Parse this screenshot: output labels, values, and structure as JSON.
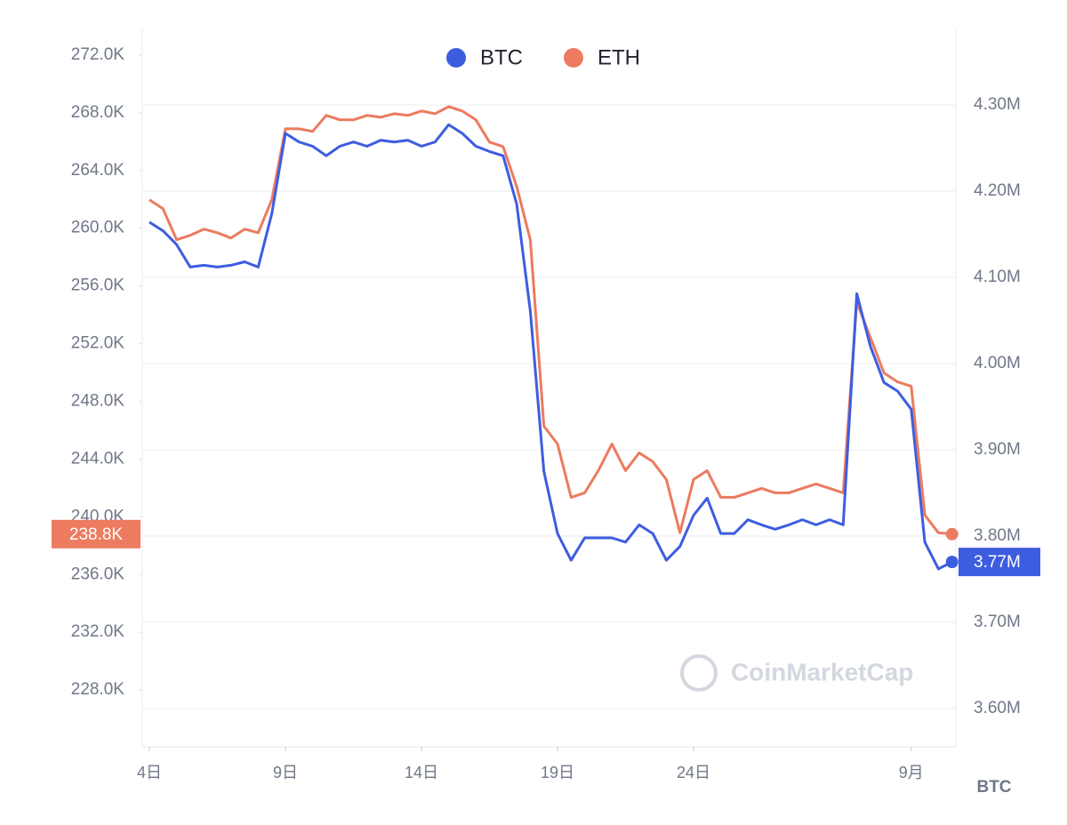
{
  "chart_data": {
    "type": "line",
    "watermark": "CoinMarketCap",
    "y2_label": "BTC",
    "legend": "top",
    "grid": true,
    "categories": [
      "4日",
      null,
      null,
      null,
      null,
      null,
      null,
      null,
      null,
      null,
      "9日",
      null,
      null,
      null,
      null,
      null,
      null,
      null,
      null,
      null,
      "14日",
      null,
      null,
      null,
      null,
      null,
      null,
      null,
      null,
      null,
      "19日",
      null,
      null,
      null,
      null,
      null,
      null,
      null,
      null,
      null,
      "24日",
      null,
      null,
      null,
      null,
      null,
      null,
      null,
      null,
      null,
      null,
      null,
      null,
      null,
      null,
      null,
      "9月",
      null,
      null,
      null
    ],
    "ylim": [
      224062,
      273969
    ],
    "yticks": [
      {
        "value": 228000,
        "label": "228.0K"
      },
      {
        "value": 232000,
        "label": "232.0K"
      },
      {
        "value": 236000,
        "label": "236.0K"
      },
      {
        "value": 240000,
        "label": "240.0K"
      },
      {
        "value": 244000,
        "label": "244.0K"
      },
      {
        "value": 248000,
        "label": "248.0K"
      },
      {
        "value": 252000,
        "label": "252.0K"
      },
      {
        "value": 256000,
        "label": "256.0K"
      },
      {
        "value": 260000,
        "label": "260.0K"
      },
      {
        "value": 264000,
        "label": "264.0K"
      },
      {
        "value": 268000,
        "label": "268.0K"
      },
      {
        "value": 272000,
        "label": "272.0K"
      }
    ],
    "y2lim": [
      3555700,
      4390700
    ],
    "y2ticks": [
      {
        "value": 3600000,
        "label": "3.60M"
      },
      {
        "value": 3700000,
        "label": "3.70M"
      },
      {
        "value": 3800000,
        "label": "3.80M"
      },
      {
        "value": 3900000,
        "label": "3.90M"
      },
      {
        "value": 4000000,
        "label": "4.00M"
      },
      {
        "value": 4100000,
        "label": "4.10M"
      },
      {
        "value": 4200000,
        "label": "4.20M"
      },
      {
        "value": 4300000,
        "label": "4.30M"
      }
    ],
    "series": [
      {
        "name": "BTC",
        "color": "#3d5de0",
        "axis": "y2",
        "last_label": "3.77M",
        "values": [
          4164000,
          4154000,
          4138000,
          4112000,
          4114000,
          4112000,
          4114000,
          4118000,
          4112000,
          4174000,
          4267000,
          4257000,
          4252000,
          4241000,
          4252000,
          4257000,
          4252000,
          4259000,
          4257000,
          4259000,
          4252000,
          4257000,
          4277000,
          4267000,
          4252000,
          4246000,
          4241000,
          4185000,
          4061000,
          3875000,
          3803000,
          3772000,
          3798000,
          3798000,
          3798000,
          3793000,
          3813000,
          3803000,
          3772000,
          3788000,
          3824000,
          3844000,
          3803000,
          3803000,
          3819000,
          3813000,
          3808000,
          3813000,
          3819000,
          3813000,
          3819000,
          3813000,
          4081000,
          4020000,
          3978000,
          3968000,
          3947000,
          3793000,
          3762000,
          3770000
        ]
      },
      {
        "name": "ETH",
        "color": "#ec7b5f",
        "axis": "y",
        "last_label": "238.8K",
        "values": [
          261970,
          261350,
          259200,
          259510,
          259940,
          259690,
          259320,
          259940,
          259690,
          261970,
          266890,
          266890,
          266710,
          267820,
          267510,
          267510,
          267820,
          267690,
          267940,
          267820,
          268120,
          267940,
          268430,
          268120,
          267510,
          265970,
          265660,
          262890,
          259200,
          246280,
          245050,
          241350,
          241660,
          243200,
          245050,
          243200,
          244430,
          243820,
          242580,
          238890,
          242580,
          243200,
          241350,
          241350,
          241660,
          241970,
          241660,
          241660,
          241970,
          242280,
          241970,
          241660,
          254890,
          252430,
          249970,
          249350,
          249050,
          240120,
          238890,
          238800
        ]
      }
    ]
  }
}
